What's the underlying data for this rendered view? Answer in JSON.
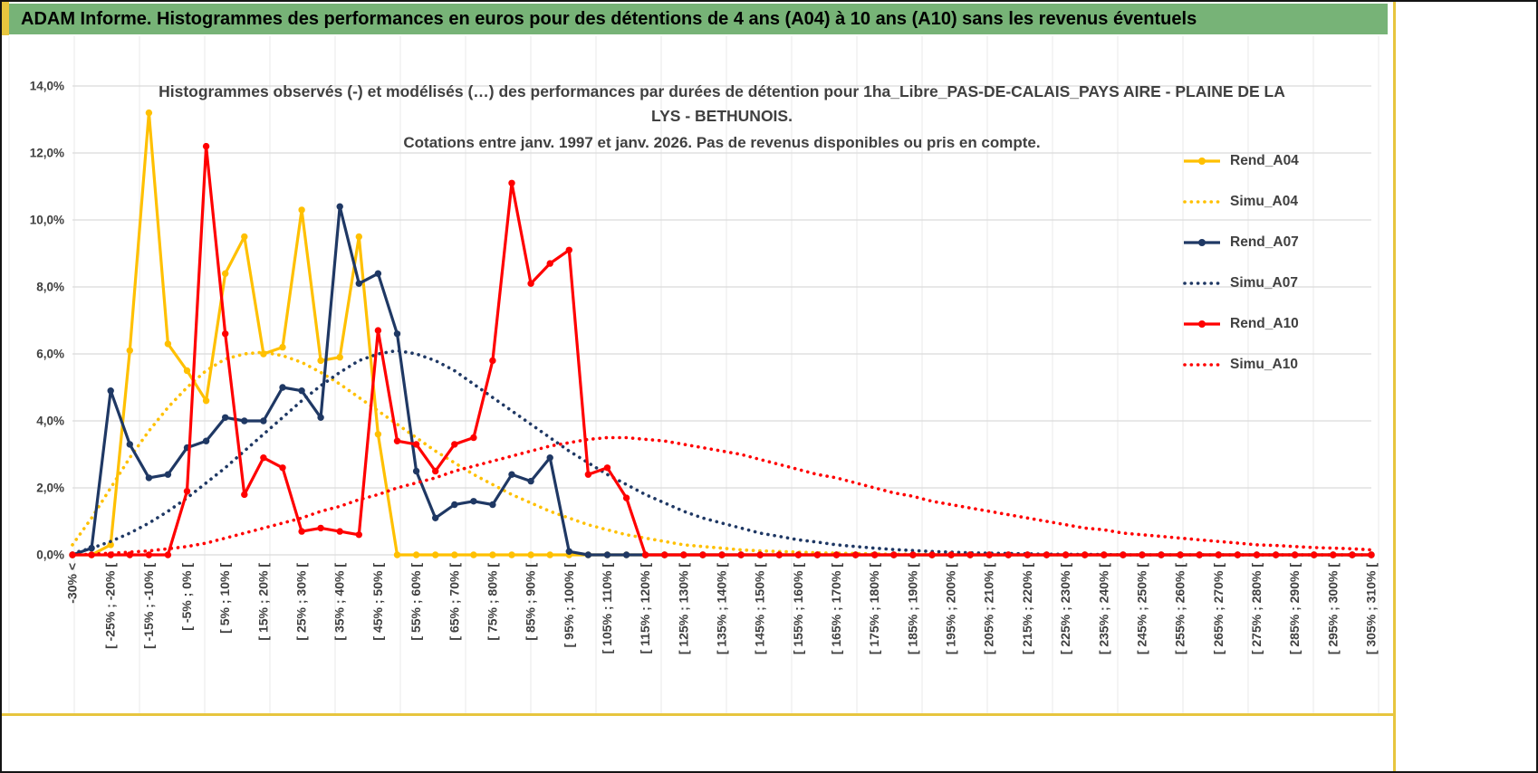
{
  "window": {
    "header_title": "ADAM Informe. Histogrammes des performances en euros pour des détentions de 4 ans (A04) à 10 ans (A10) sans les revenus éventuels"
  },
  "colors": {
    "header_green": "#77B377",
    "accent_yellow": "#E7C53E",
    "grid_line": "#D9D9D9",
    "sheet_line": "#EAEAEA",
    "text_gray": "#404040",
    "series_gold": "#FFC000",
    "series_navy": "#1F3864",
    "series_red": "#FF0000"
  },
  "chart_data": {
    "type": "line",
    "title_line1": "Histogrammes observés (-) et modélisés (…) des performances par durées de détention pour 1ha_Libre_PAS-DE-CALAIS_PAYS AIRE - PLAINE DE LA LYS - BETHUNOIS.",
    "title_line2": "Cotations entre janv. 1997 et janv. 2026. Pas de revenus disponibles ou pris en compte.",
    "legend_position": "right",
    "grid": true,
    "ylim": [
      0,
      14
    ],
    "y_unit": "%",
    "ytick_labels": [
      "0,0%",
      "2,0%",
      "4,0%",
      "6,0%",
      "8,0%",
      "10,0%",
      "12,0%",
      "14,0%"
    ],
    "categories": [
      "-30% <",
      "",
      "[ -25% ; -20% [",
      "",
      "[ -15% ; -10% [",
      "",
      "[ -5% ; 0% [",
      "",
      "[ 5% ; 10% [",
      "",
      "[ 15% ; 20% [",
      "",
      "[ 25% ; 30% [",
      "",
      "[ 35% ; 40% [",
      "",
      "[ 45% ; 50% [",
      "",
      "[ 55% ; 60% [",
      "",
      "[ 65% ; 70% [",
      "",
      "[ 75% ; 80% [",
      "",
      "[ 85% ; 90% [",
      "",
      "[ 95% ; 100% [",
      "",
      "[ 105% ; 110% [",
      "",
      "[ 115% ; 120% [",
      "",
      "[ 125% ; 130% [",
      "",
      "[ 135% ; 140% [",
      "",
      "[ 145% ; 150% [",
      "",
      "[ 155% ; 160% [",
      "",
      "[ 165% ; 170% [",
      "",
      "[ 175% ; 180% [",
      "",
      "[ 185% ; 190% [",
      "",
      "[ 195% ; 200% [",
      "",
      "[ 205% ; 210% [",
      "",
      "[ 215% ; 220% [",
      "",
      "[ 225% ; 230% [",
      "",
      "[ 235% ; 240% [",
      "",
      "[ 245% ; 250% [",
      "",
      "[ 255% ; 260% [",
      "",
      "[ 265% ; 270% [",
      "",
      "[ 275% ; 280% [",
      "",
      "[ 285% ; 290% [",
      "",
      "[ 295% ; 300% [",
      "",
      "[ 305% ; 310% ["
    ],
    "series": [
      {
        "name": "Rend_A04",
        "style": "solid",
        "color": "#FFC000",
        "values": [
          0,
          0,
          0.3,
          6.1,
          13.2,
          6.3,
          5.5,
          4.6,
          8.4,
          9.5,
          6.0,
          6.2,
          10.3,
          5.8,
          5.9,
          9.5,
          3.6,
          0,
          0,
          0,
          0,
          0,
          0,
          0,
          0,
          0,
          0,
          0,
          0,
          0,
          0,
          0,
          0,
          0,
          0,
          0,
          0,
          0,
          0,
          0,
          0,
          0,
          0,
          0,
          0,
          0,
          0,
          0,
          0,
          0,
          0,
          0,
          0,
          0,
          0,
          0,
          0,
          0,
          0,
          0,
          0,
          0,
          0,
          0,
          0,
          0,
          0,
          0,
          0
        ]
      },
      {
        "name": "Simu_A04",
        "style": "dotted",
        "color": "#FFC000",
        "values": [
          0.3,
          1.1,
          2.0,
          2.9,
          3.7,
          4.4,
          5.0,
          5.5,
          5.85,
          6.0,
          6.05,
          5.95,
          5.75,
          5.45,
          5.1,
          4.7,
          4.3,
          3.9,
          3.5,
          3.1,
          2.75,
          2.4,
          2.1,
          1.8,
          1.55,
          1.3,
          1.1,
          0.9,
          0.75,
          0.6,
          0.5,
          0.4,
          0.3,
          0.25,
          0.2,
          0.15,
          0.12,
          0.1,
          0.08,
          0.06,
          0.05,
          0.04,
          0.03,
          0.02,
          0.02,
          0.01,
          0.01,
          0.01,
          0,
          0,
          0,
          0,
          0,
          0,
          0,
          0,
          0,
          0,
          0,
          0,
          0,
          0,
          0,
          0,
          0,
          0,
          0,
          0,
          0
        ]
      },
      {
        "name": "Rend_A07",
        "style": "solid",
        "color": "#1F3864",
        "values": [
          0,
          0.2,
          4.9,
          3.3,
          2.3,
          2.4,
          3.2,
          3.4,
          4.1,
          4.0,
          4.0,
          5.0,
          4.9,
          4.1,
          10.4,
          8.1,
          8.4,
          6.6,
          2.5,
          1.1,
          1.5,
          1.6,
          1.5,
          2.4,
          2.2,
          2.9,
          0.1,
          0,
          0,
          0,
          0,
          0,
          0,
          0,
          0,
          0,
          0,
          0,
          0,
          0,
          0,
          0,
          0,
          0,
          0,
          0,
          0,
          0,
          0,
          0,
          0,
          0,
          0,
          0,
          0,
          0,
          0,
          0,
          0,
          0,
          0,
          0,
          0,
          0,
          0,
          0,
          0,
          0,
          0
        ]
      },
      {
        "name": "Simu_A07",
        "style": "dotted",
        "color": "#1F3864",
        "values": [
          0.05,
          0.2,
          0.4,
          0.65,
          0.95,
          1.3,
          1.7,
          2.15,
          2.6,
          3.1,
          3.6,
          4.1,
          4.6,
          5.05,
          5.45,
          5.8,
          6.0,
          6.1,
          6.0,
          5.8,
          5.5,
          5.1,
          4.7,
          4.3,
          3.9,
          3.5,
          3.1,
          2.75,
          2.4,
          2.1,
          1.8,
          1.55,
          1.3,
          1.1,
          0.95,
          0.8,
          0.65,
          0.55,
          0.45,
          0.38,
          0.3,
          0.25,
          0.2,
          0.16,
          0.13,
          0.1,
          0.08,
          0.06,
          0.05,
          0.04,
          0.03,
          0.02,
          0.02,
          0.01,
          0.01,
          0,
          0,
          0,
          0,
          0,
          0,
          0,
          0,
          0,
          0,
          0,
          0,
          0,
          0
        ]
      },
      {
        "name": "Rend_A10",
        "style": "solid",
        "color": "#FF0000",
        "values": [
          0,
          0,
          0,
          0,
          0,
          0,
          1.9,
          12.2,
          6.6,
          1.8,
          2.9,
          2.6,
          0.7,
          0.8,
          0.7,
          0.6,
          6.7,
          3.4,
          3.3,
          2.5,
          3.3,
          3.5,
          5.8,
          11.1,
          8.1,
          8.7,
          9.1,
          2.4,
          2.6,
          1.7,
          0,
          0,
          0,
          0,
          0,
          0,
          0,
          0,
          0,
          0,
          0,
          0,
          0,
          0,
          0,
          0,
          0,
          0,
          0,
          0,
          0,
          0,
          0,
          0,
          0,
          0,
          0,
          0,
          0,
          0,
          0,
          0,
          0,
          0,
          0,
          0,
          0,
          0,
          0
        ]
      },
      {
        "name": "Simu_A10",
        "style": "dotted",
        "color": "#FF0000",
        "values": [
          0,
          0.02,
          0.05,
          0.08,
          0.12,
          0.18,
          0.25,
          0.35,
          0.5,
          0.65,
          0.8,
          0.95,
          1.1,
          1.3,
          1.45,
          1.65,
          1.8,
          2.0,
          2.15,
          2.3,
          2.5,
          2.65,
          2.8,
          2.95,
          3.1,
          3.25,
          3.35,
          3.45,
          3.5,
          3.5,
          3.45,
          3.4,
          3.3,
          3.2,
          3.1,
          3.0,
          2.85,
          2.7,
          2.55,
          2.4,
          2.3,
          2.15,
          2.0,
          1.85,
          1.75,
          1.6,
          1.5,
          1.4,
          1.3,
          1.2,
          1.1,
          1.0,
          0.9,
          0.8,
          0.75,
          0.65,
          0.6,
          0.55,
          0.5,
          0.45,
          0.4,
          0.35,
          0.3,
          0.28,
          0.25,
          0.22,
          0.2,
          0.18,
          0.15
        ]
      }
    ]
  }
}
